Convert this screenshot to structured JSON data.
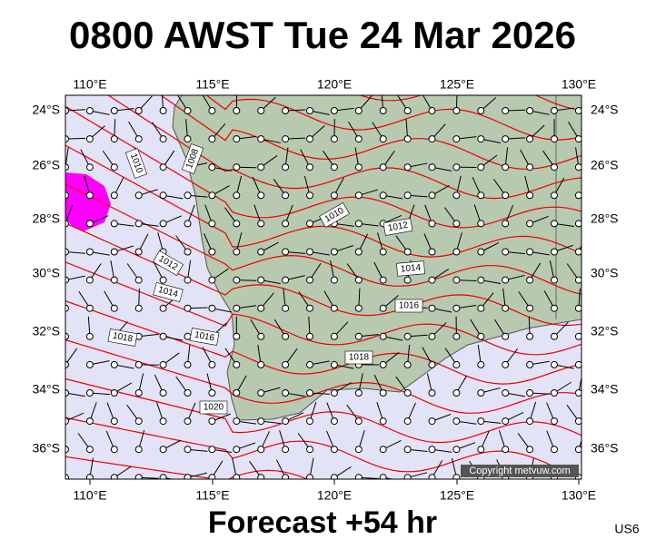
{
  "header": {
    "title": "0800 AWST Tue 24 Mar 2026"
  },
  "map": {
    "x_labels": [
      "110°E",
      "115°E",
      "120°E",
      "125°E",
      "130°E"
    ],
    "y_labels": [
      "24°S",
      "26°S",
      "28°S",
      "30°S",
      "32°S",
      "34°S",
      "36°S"
    ],
    "isobar_labels": [
      "1010",
      "1008",
      "1010",
      "1012",
      "1012",
      "1014",
      "1014",
      "1016",
      "1016",
      "1018",
      "1018",
      "1020"
    ],
    "copyright": "Copyright metvuw.com"
  },
  "footer": {
    "forecast": "Forecast +54 hr",
    "code": "US6"
  }
}
